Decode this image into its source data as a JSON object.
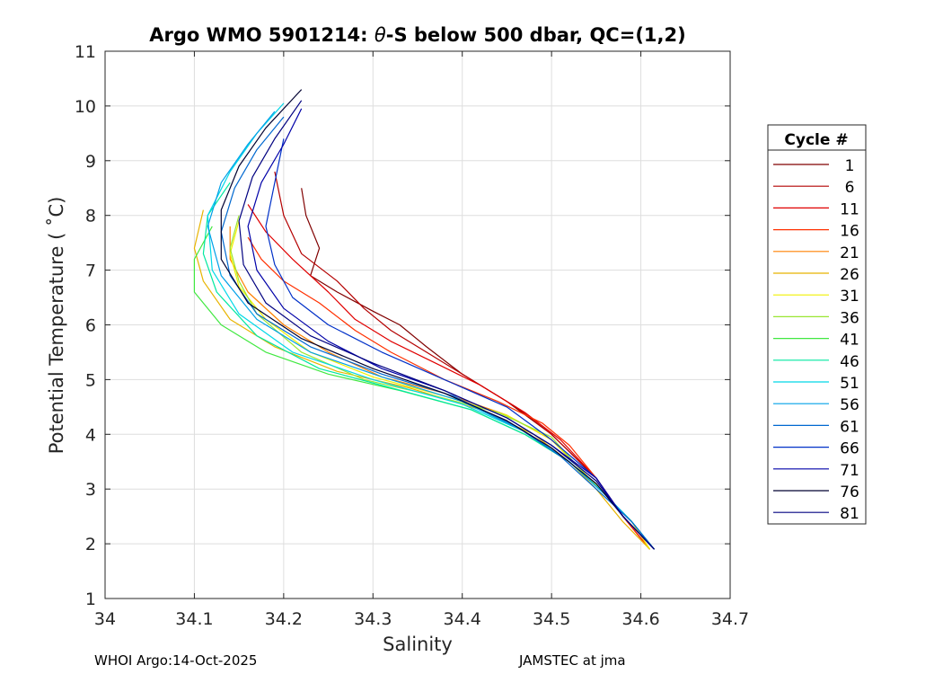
{
  "chart_data": {
    "type": "line",
    "title_parts": {
      "prefix": "Argo WMO 5901214: ",
      "theta": "θ",
      "suffix": "-S below 500 dbar,  QC=(1,2)"
    },
    "xlabel": "Salinity",
    "ylabel": "Potential Temperature ( ˚C)",
    "xlim": [
      34.0,
      34.7
    ],
    "ylim": [
      1,
      11
    ],
    "xticks": [
      34.0,
      34.1,
      34.2,
      34.3,
      34.4,
      34.5,
      34.6,
      34.7
    ],
    "xtick_labels": [
      "34",
      "34.1",
      "34.2",
      "34.3",
      "34.4",
      "34.5",
      "34.6",
      "34.7"
    ],
    "yticks": [
      1,
      2,
      3,
      4,
      5,
      6,
      7,
      8,
      9,
      10,
      11
    ],
    "ytick_labels": [
      "1",
      "2",
      "3",
      "4",
      "5",
      "6",
      "7",
      "8",
      "9",
      "10",
      "11"
    ],
    "grid": true,
    "legend": {
      "title": "Cycle #",
      "position": "right",
      "entries": [
        {
          "label": "1",
          "color": "#800000"
        },
        {
          "label": "6",
          "color": "#b40000"
        },
        {
          "label": "11",
          "color": "#e00000"
        },
        {
          "label": "16",
          "color": "#ff3000"
        },
        {
          "label": "21",
          "color": "#ff8000"
        },
        {
          "label": "26",
          "color": "#e8b400"
        },
        {
          "label": "31",
          "color": "#f0f000"
        },
        {
          "label": "36",
          "color": "#9ae632"
        },
        {
          "label": "41",
          "color": "#40e840"
        },
        {
          "label": "46",
          "color": "#00e8a0"
        },
        {
          "label": "51",
          "color": "#00d8e8"
        },
        {
          "label": "56",
          "color": "#00a0e8"
        },
        {
          "label": "61",
          "color": "#0068d0"
        },
        {
          "label": "66",
          "color": "#0030c8"
        },
        {
          "label": "71",
          "color": "#0000a8"
        },
        {
          "label": "76",
          "color": "#000030"
        },
        {
          "label": "81",
          "color": "#000080"
        }
      ]
    },
    "series": [
      {
        "name": "1",
        "color": "#800000",
        "x": [
          34.22,
          34.225,
          34.24,
          34.23,
          34.26,
          34.3,
          34.33,
          34.36,
          34.4,
          34.45,
          34.5,
          34.55,
          34.58,
          34.61
        ],
        "y": [
          8.5,
          8.0,
          7.4,
          6.9,
          6.6,
          6.25,
          6.0,
          5.6,
          5.1,
          4.6,
          4.0,
          3.2,
          2.5,
          1.9
        ]
      },
      {
        "name": "6",
        "color": "#b40000",
        "x": [
          34.19,
          34.2,
          34.22,
          34.26,
          34.29,
          34.32,
          34.36,
          34.41,
          34.46,
          34.5,
          34.55,
          34.58,
          34.61
        ],
        "y": [
          8.8,
          8.0,
          7.3,
          6.8,
          6.3,
          5.9,
          5.5,
          5.0,
          4.5,
          4.0,
          3.2,
          2.5,
          1.9
        ]
      },
      {
        "name": "11",
        "color": "#e00000",
        "x": [
          34.16,
          34.18,
          34.21,
          34.25,
          34.28,
          34.32,
          34.37,
          34.42,
          34.47,
          34.51,
          34.55,
          34.58,
          34.61
        ],
        "y": [
          8.2,
          7.7,
          7.2,
          6.6,
          6.1,
          5.7,
          5.3,
          4.9,
          4.4,
          3.9,
          3.2,
          2.5,
          1.9
        ]
      },
      {
        "name": "16",
        "color": "#ff3000",
        "x": [
          34.16,
          34.175,
          34.2,
          34.24,
          34.28,
          34.32,
          34.38,
          34.44,
          34.49,
          34.52,
          34.55,
          34.58,
          34.61
        ],
        "y": [
          7.6,
          7.2,
          6.8,
          6.4,
          5.9,
          5.5,
          5.0,
          4.6,
          4.2,
          3.8,
          3.2,
          2.5,
          1.9
        ]
      },
      {
        "name": "21",
        "color": "#ff8000",
        "x": [
          34.14,
          34.14,
          34.16,
          34.2,
          34.25,
          34.31,
          34.38,
          34.45,
          34.5,
          34.53,
          34.56,
          34.59,
          34.61
        ],
        "y": [
          7.8,
          7.2,
          6.6,
          6.0,
          5.5,
          5.05,
          4.75,
          4.35,
          3.9,
          3.4,
          2.9,
          2.4,
          1.9
        ]
      },
      {
        "name": "26",
        "color": "#e8b400",
        "x": [
          34.11,
          34.1,
          34.11,
          34.14,
          34.19,
          34.26,
          34.34,
          34.42,
          34.48,
          34.52,
          34.55,
          34.58,
          34.61
        ],
        "y": [
          8.1,
          7.4,
          6.8,
          6.1,
          5.6,
          5.15,
          4.85,
          4.45,
          4.0,
          3.5,
          3.0,
          2.4,
          1.9
        ]
      },
      {
        "name": "31",
        "color": "#f0f000",
        "x": [
          34.15,
          34.14,
          34.15,
          34.18,
          34.23,
          34.3,
          34.38,
          34.45,
          34.5,
          34.53,
          34.56,
          34.59,
          34.61
        ],
        "y": [
          7.9,
          7.3,
          6.7,
          6.1,
          5.5,
          5.05,
          4.7,
          4.35,
          3.9,
          3.4,
          2.9,
          2.4,
          1.9
        ]
      },
      {
        "name": "36",
        "color": "#9ae632",
        "x": [
          34.15,
          34.14,
          34.15,
          34.17,
          34.22,
          34.29,
          34.37,
          34.44,
          34.5,
          34.53,
          34.56,
          34.59,
          34.615
        ],
        "y": [
          8.0,
          7.4,
          6.8,
          6.2,
          5.5,
          5.0,
          4.7,
          4.4,
          3.95,
          3.4,
          2.9,
          2.4,
          1.9
        ]
      },
      {
        "name": "41",
        "color": "#40e840",
        "x": [
          34.12,
          34.1,
          34.1,
          34.13,
          34.18,
          34.25,
          34.33,
          34.41,
          34.47,
          34.52,
          34.56,
          34.59,
          34.615
        ],
        "y": [
          7.8,
          7.2,
          6.6,
          6.0,
          5.5,
          5.1,
          4.8,
          4.45,
          4.0,
          3.5,
          2.9,
          2.4,
          1.9
        ]
      },
      {
        "name": "46",
        "color": "#00e8a0",
        "x": [
          34.14,
          34.115,
          34.11,
          34.125,
          34.17,
          34.24,
          34.32,
          34.41,
          34.47,
          34.52,
          34.56,
          34.59,
          34.615
        ],
        "y": [
          8.6,
          8.0,
          7.3,
          6.6,
          5.8,
          5.2,
          4.85,
          4.45,
          4.0,
          3.5,
          2.9,
          2.4,
          1.9
        ]
      },
      {
        "name": "51",
        "color": "#00d8e8",
        "x": [
          34.2,
          34.17,
          34.14,
          34.115,
          34.12,
          34.15,
          34.21,
          34.3,
          34.4,
          34.47,
          34.52,
          34.56,
          34.59,
          34.615
        ],
        "y": [
          10.05,
          9.5,
          8.8,
          8.0,
          7.0,
          6.2,
          5.5,
          5.0,
          4.55,
          4.05,
          3.5,
          2.9,
          2.4,
          1.9
        ]
      },
      {
        "name": "56",
        "color": "#00a0e8",
        "x": [
          34.19,
          34.16,
          34.13,
          34.115,
          34.13,
          34.17,
          34.23,
          34.31,
          34.4,
          34.47,
          34.52,
          34.56,
          34.59,
          34.615
        ],
        "y": [
          9.9,
          9.3,
          8.6,
          7.8,
          6.9,
          6.1,
          5.5,
          5.05,
          4.6,
          4.05,
          3.5,
          2.9,
          2.4,
          1.9
        ]
      },
      {
        "name": "61",
        "color": "#0068d0",
        "x": [
          34.2,
          34.17,
          34.145,
          34.13,
          34.14,
          34.17,
          34.23,
          34.31,
          34.39,
          34.46,
          34.51,
          34.55,
          34.59,
          34.615
        ],
        "y": [
          9.8,
          9.2,
          8.5,
          7.7,
          6.9,
          6.2,
          5.6,
          5.1,
          4.7,
          4.15,
          3.6,
          3.0,
          2.4,
          1.9
        ]
      },
      {
        "name": "66",
        "color": "#0030c8",
        "x": [
          34.2,
          34.19,
          34.18,
          34.19,
          34.21,
          34.25,
          34.31,
          34.38,
          34.45,
          34.5,
          34.55,
          34.58,
          34.615
        ],
        "y": [
          9.4,
          8.6,
          7.8,
          7.1,
          6.5,
          6.0,
          5.5,
          5.0,
          4.5,
          3.9,
          3.2,
          2.5,
          1.9
        ]
      },
      {
        "name": "71",
        "color": "#0000a8",
        "x": [
          34.22,
          34.2,
          34.175,
          34.16,
          34.17,
          34.2,
          34.25,
          34.31,
          34.38,
          34.45,
          34.5,
          34.55,
          34.58,
          34.615
        ],
        "y": [
          9.95,
          9.3,
          8.6,
          7.8,
          7.0,
          6.3,
          5.7,
          5.2,
          4.8,
          4.3,
          3.8,
          3.2,
          2.5,
          1.9
        ]
      },
      {
        "name": "76",
        "color": "#000030",
        "x": [
          34.22,
          34.18,
          34.15,
          34.13,
          34.13,
          34.16,
          34.22,
          34.3,
          34.38,
          34.45,
          34.5,
          34.55,
          34.58,
          34.615
        ],
        "y": [
          10.3,
          9.6,
          8.9,
          8.1,
          7.2,
          6.4,
          5.75,
          5.2,
          4.75,
          4.25,
          3.75,
          3.1,
          2.5,
          1.9
        ]
      },
      {
        "name": "81",
        "color": "#000080",
        "x": [
          34.22,
          34.19,
          34.165,
          34.15,
          34.155,
          34.18,
          34.23,
          34.3,
          34.38,
          34.45,
          34.5,
          34.55,
          34.58,
          34.615
        ],
        "y": [
          10.1,
          9.4,
          8.7,
          7.9,
          7.1,
          6.4,
          5.8,
          5.3,
          4.8,
          4.3,
          3.8,
          3.15,
          2.5,
          1.9
        ]
      }
    ]
  },
  "footer": {
    "left": "WHOI Argo:14-Oct-2025",
    "right": "JAMSTEC at jma"
  }
}
